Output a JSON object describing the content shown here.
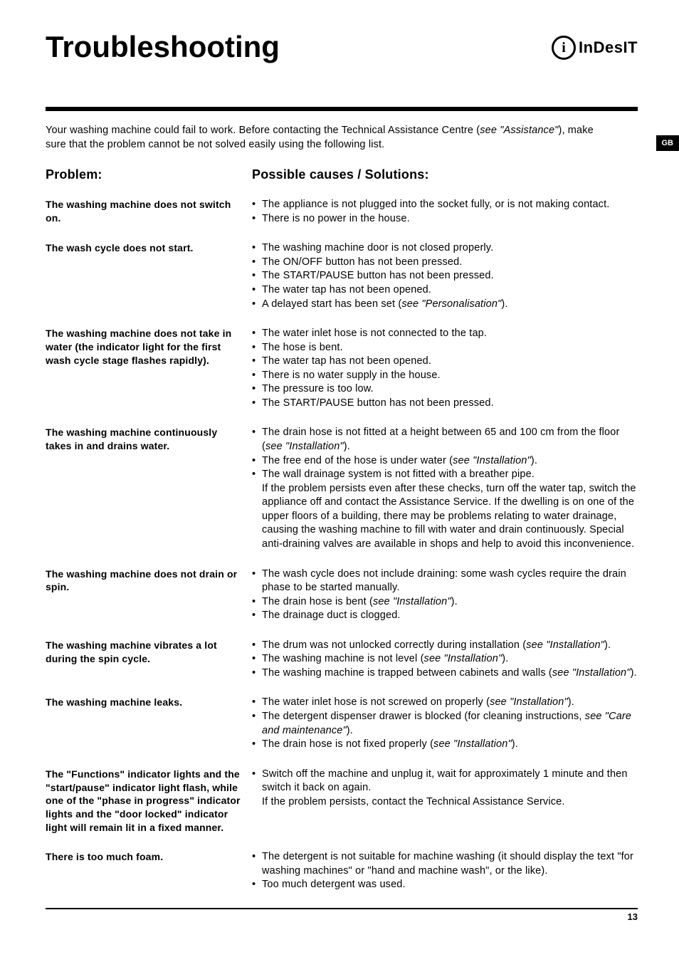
{
  "page_title": "Troubleshooting",
  "brand": {
    "icon_glyph": "i",
    "name": "InDesIT"
  },
  "lang_tab": "GB",
  "intro_html": "Your washing machine could fail to work. Before contacting the Technical Assistance Centre (<em>see \"Assistance\"</em>), make sure that the problem cannot be not solved easily using the following list.",
  "col_headers": {
    "left": "Problem:",
    "right": "Possible causes / Solutions:"
  },
  "rows": [
    {
      "problem": "The washing machine does not switch on.",
      "solutions": [
        {
          "t": "b",
          "html": "The appliance is not plugged into the socket fully, or is not making contact."
        },
        {
          "t": "b",
          "html": "There is no power in the house."
        }
      ]
    },
    {
      "problem": "The wash cycle does not start.",
      "solutions": [
        {
          "t": "b",
          "html": "The washing machine door is not closed properly."
        },
        {
          "t": "b",
          "html": "The ON/OFF button has not been pressed."
        },
        {
          "t": "b",
          "html": "The START/PAUSE button has not been pressed."
        },
        {
          "t": "b",
          "html": "The water tap has not been opened."
        },
        {
          "t": "b",
          "html": "A delayed start has been set (<em>see \"Personalisation\"</em>)."
        }
      ]
    },
    {
      "problem": "The washing machine does not take in water (the indicator light for the first wash cycle stage flashes rapidly).",
      "solutions": [
        {
          "t": "b",
          "html": "The water inlet hose is not connected to the tap."
        },
        {
          "t": "b",
          "html": "The hose is bent."
        },
        {
          "t": "b",
          "html": "The water tap has not been opened."
        },
        {
          "t": "b",
          "html": "There is no water supply in the house."
        },
        {
          "t": "b",
          "html": "The pressure is too low."
        },
        {
          "t": "b",
          "html": "The START/PAUSE button has not been pressed."
        }
      ]
    },
    {
      "problem": "The washing machine continuously takes in and drains water.",
      "solutions": [
        {
          "t": "b",
          "html": "The drain hose is not fitted at a height between 65 and 100 cm from the floor (<em>see \"Installation\"</em>)."
        },
        {
          "t": "b",
          "html": "The free end of the hose is under water (<em>see \"Installation\"</em>)."
        },
        {
          "t": "b",
          "html": "The wall drainage system is not fitted with a breather pipe."
        },
        {
          "t": "p",
          "html": "If the problem persists even after these checks, turn off the water tap, switch the appliance off and contact the Assistance Service. If the dwelling is on one of the upper floors of a building, there may be problems relating to water drainage, causing the washing machine to fill with water and drain continuously. Special anti-draining valves are available in shops and help to avoid this inconvenience."
        }
      ]
    },
    {
      "problem": "The washing machine does not drain or spin.",
      "solutions": [
        {
          "t": "b",
          "html": "The wash cycle does not include draining: some wash cycles require the drain phase to be started manually."
        },
        {
          "t": "b",
          "html": "The drain hose is bent (<em>see \"Installation\"</em>)."
        },
        {
          "t": "b",
          "html": "The drainage duct is clogged."
        }
      ]
    },
    {
      "problem": "The washing machine vibrates a lot during the spin cycle.",
      "solutions": [
        {
          "t": "b",
          "html": "The drum was not unlocked correctly during installation (<em>see \"Installation\"</em>)."
        },
        {
          "t": "b",
          "html": "The washing machine is not level (<em>see \"Installation\"</em>)."
        },
        {
          "t": "b",
          "html": "The washing machine is trapped between cabinets and walls (<em>see \"Installation\"</em>)."
        }
      ]
    },
    {
      "problem": "The washing machine leaks.",
      "solutions": [
        {
          "t": "b",
          "html": "The water inlet hose is not screwed on properly (<em>see \"Installation\"</em>)."
        },
        {
          "t": "b",
          "html": "The detergent dispenser drawer is blocked (for cleaning instructions, <em>see \"Care and maintenance\"</em>)."
        },
        {
          "t": "b",
          "html": "The drain hose is not fixed properly (<em>see \"Installation\"</em>)."
        }
      ]
    },
    {
      "problem": "The \"Functions\" indicator lights and the \"start/pause\" indicator light flash, while one of the \"phase in progress\" indicator lights and the \"door locked\" indicator light will remain lit in a fixed manner.",
      "solutions": [
        {
          "t": "b",
          "html": "Switch off the machine and unplug it, wait for approximately 1 minute and then switch it back on again."
        },
        {
          "t": "p",
          "html": "If the problem persists, contact the Technical Assistance Service."
        }
      ]
    },
    {
      "problem": "There is too much foam.",
      "solutions": [
        {
          "t": "b",
          "html": "The detergent is not suitable for machine washing (it should display the text \"for washing machines\" or \"hand and machine wash\", or the like)."
        },
        {
          "t": "b",
          "html": "Too much detergent was used."
        }
      ]
    }
  ],
  "page_number": "13",
  "colors": {
    "text": "#000000",
    "bg": "#ffffff"
  }
}
